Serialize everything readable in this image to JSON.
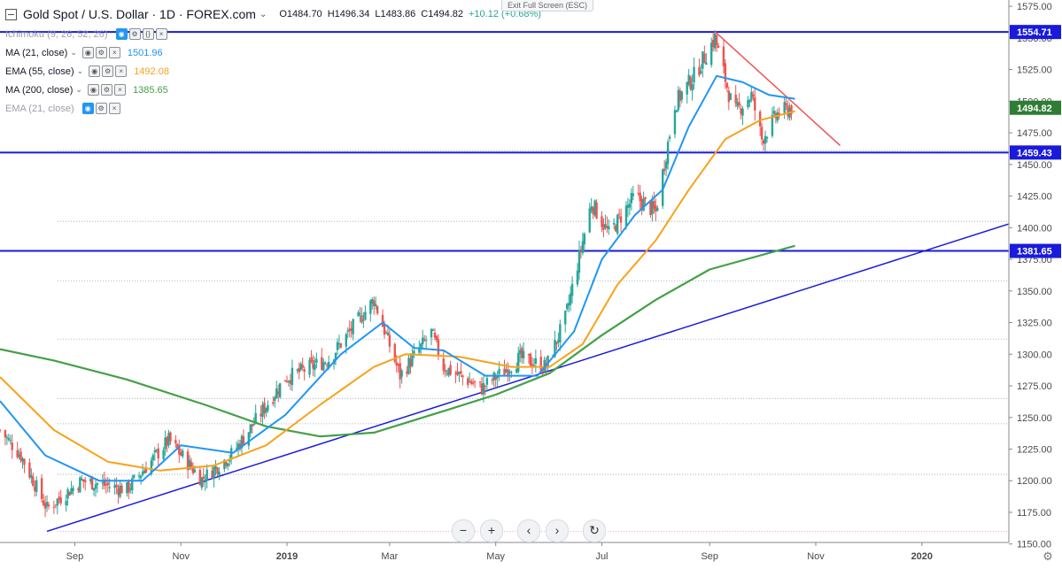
{
  "header": {
    "symbol_title": "Gold Spot / U.S. Dollar · 1D · FOREX.com",
    "open": "O1484.70",
    "high": "H1496.34",
    "low": "L1483.86",
    "close": "C1494.82",
    "change": "+10.12 (+0.68%)",
    "exit_fullscreen": "Exit Full Screen (ESC)"
  },
  "indicators": [
    {
      "name": "Ichimoku (9, 26, 52, 26)",
      "value": "",
      "color": "#9aa0a8",
      "faded": true
    },
    {
      "name": "MA (21, close)",
      "value": "1501.96",
      "color": "#2196f3",
      "faded": false
    },
    {
      "name": "EMA (55, close)",
      "value": "1492.08",
      "color": "#f7a21b",
      "faded": false
    },
    {
      "name": "MA (200, close)",
      "value": "1385.65",
      "color": "#43a047",
      "faded": false
    },
    {
      "name": "EMA (21, close)",
      "value": "",
      "color": "#9aa0a8",
      "faded": true
    }
  ],
  "colors": {
    "up": "#26a69a",
    "down": "#ef5350",
    "hline": "#1a1adb",
    "trend_up": "#1a1adb",
    "trend_down": "#ef5350",
    "ma21": "#2196f3",
    "ema55": "#f7a21b",
    "ma200": "#43a047",
    "current_price_bg": "#2e7d32"
  },
  "chart_data": {
    "type": "candlestick",
    "title": "Gold Spot / U.S. Dollar · 1D · FOREX.com",
    "x_ticks": [
      "Sep",
      "Nov",
      "2019",
      "Mar",
      "May",
      "Jul",
      "Sep",
      "Nov",
      "2020"
    ],
    "x_tick_dates": [
      "2018-09-01",
      "2018-11-01",
      "2019-01-01",
      "2019-03-01",
      "2019-05-01",
      "2019-07-01",
      "2019-09-01",
      "2019-11-01",
      "2020-01-01"
    ],
    "ylim": [
      1140,
      1580
    ],
    "y_ticks": [
      1150,
      1175,
      1200,
      1225,
      1250,
      1275,
      1300,
      1325,
      1350,
      1375,
      1400,
      1425,
      1450,
      1475,
      1500,
      1525,
      1550,
      1575
    ],
    "horizontal_levels": [
      {
        "value": 1554.71,
        "label": "1554.71"
      },
      {
        "value": 1459.43,
        "label": "1459.43"
      },
      {
        "value": 1381.65,
        "label": "1381.65"
      }
    ],
    "current_price": {
      "value": 1494.82,
      "label": "1494.82"
    },
    "trendlines": [
      {
        "name": "support",
        "from": [
          "2018-08-16",
          1160
        ],
        "to": [
          "2020-02-20",
          1403
        ]
      },
      {
        "name": "resistance",
        "from": [
          "2019-09-04",
          1555
        ],
        "to": [
          "2019-11-15",
          1465
        ]
      }
    ],
    "price_path": [
      [
        "2018-07-20",
        1240
      ],
      [
        "2018-08-01",
        1220
      ],
      [
        "2018-08-16",
        1178
      ],
      [
        "2018-09-05",
        1200
      ],
      [
        "2018-10-01",
        1193
      ],
      [
        "2018-10-25",
        1232
      ],
      [
        "2018-11-13",
        1201
      ],
      [
        "2018-12-01",
        1222
      ],
      [
        "2018-12-31",
        1281
      ],
      [
        "2019-01-25",
        1296
      ],
      [
        "2019-02-20",
        1343
      ],
      [
        "2019-03-07",
        1283
      ],
      [
        "2019-03-25",
        1317
      ],
      [
        "2019-04-01",
        1290
      ],
      [
        "2019-04-23",
        1273
      ],
      [
        "2019-05-15",
        1297
      ],
      [
        "2019-05-30",
        1290
      ],
      [
        "2019-06-10",
        1328
      ],
      [
        "2019-06-25",
        1420
      ],
      [
        "2019-07-05",
        1395
      ],
      [
        "2019-07-20",
        1425
      ],
      [
        "2019-08-01",
        1412
      ],
      [
        "2019-08-12",
        1498
      ],
      [
        "2019-08-23",
        1520
      ],
      [
        "2019-09-04",
        1550
      ],
      [
        "2019-09-15",
        1490
      ],
      [
        "2019-09-25",
        1505
      ],
      [
        "2019-10-01",
        1470
      ],
      [
        "2019-10-10",
        1490
      ],
      [
        "2019-10-18",
        1494.82
      ]
    ],
    "ma21_path": [
      [
        "2018-07-20",
        1263
      ],
      [
        "2018-08-15",
        1220
      ],
      [
        "2018-09-15",
        1200
      ],
      [
        "2018-10-10",
        1200
      ],
      [
        "2018-11-01",
        1228
      ],
      [
        "2018-12-01",
        1222
      ],
      [
        "2018-12-31",
        1252
      ],
      [
        "2019-02-01",
        1300
      ],
      [
        "2019-02-25",
        1325
      ],
      [
        "2019-03-15",
        1305
      ],
      [
        "2019-04-01",
        1303
      ],
      [
        "2019-04-25",
        1283
      ],
      [
        "2019-05-25",
        1283
      ],
      [
        "2019-06-15",
        1318
      ],
      [
        "2019-07-01",
        1375
      ],
      [
        "2019-07-20",
        1410
      ],
      [
        "2019-08-05",
        1430
      ],
      [
        "2019-08-20",
        1480
      ],
      [
        "2019-09-05",
        1520
      ],
      [
        "2019-09-20",
        1515
      ],
      [
        "2019-10-05",
        1505
      ],
      [
        "2019-10-20",
        1501.96
      ]
    ],
    "ema55_path": [
      [
        "2018-07-20",
        1282
      ],
      [
        "2018-08-20",
        1240
      ],
      [
        "2018-09-20",
        1215
      ],
      [
        "2018-10-20",
        1208
      ],
      [
        "2018-11-20",
        1212
      ],
      [
        "2018-12-20",
        1228
      ],
      [
        "2019-01-20",
        1260
      ],
      [
        "2019-02-20",
        1290
      ],
      [
        "2019-03-10",
        1300
      ],
      [
        "2019-04-10",
        1298
      ],
      [
        "2019-05-10",
        1290
      ],
      [
        "2019-06-01",
        1290
      ],
      [
        "2019-06-20",
        1308
      ],
      [
        "2019-07-10",
        1355
      ],
      [
        "2019-08-01",
        1390
      ],
      [
        "2019-08-20",
        1430
      ],
      [
        "2019-09-10",
        1470
      ],
      [
        "2019-09-30",
        1485
      ],
      [
        "2019-10-20",
        1492.08
      ]
    ],
    "ma200_path": [
      [
        "2018-07-20",
        1304
      ],
      [
        "2018-08-20",
        1295
      ],
      [
        "2018-10-01",
        1280
      ],
      [
        "2018-11-15",
        1260
      ],
      [
        "2018-12-20",
        1243
      ],
      [
        "2019-01-20",
        1235
      ],
      [
        "2019-02-20",
        1238
      ],
      [
        "2019-04-01",
        1255
      ],
      [
        "2019-05-01",
        1268
      ],
      [
        "2019-06-01",
        1285
      ],
      [
        "2019-07-01",
        1315
      ],
      [
        "2019-08-01",
        1343
      ],
      [
        "2019-09-01",
        1367
      ],
      [
        "2019-10-20",
        1385.65
      ]
    ]
  }
}
